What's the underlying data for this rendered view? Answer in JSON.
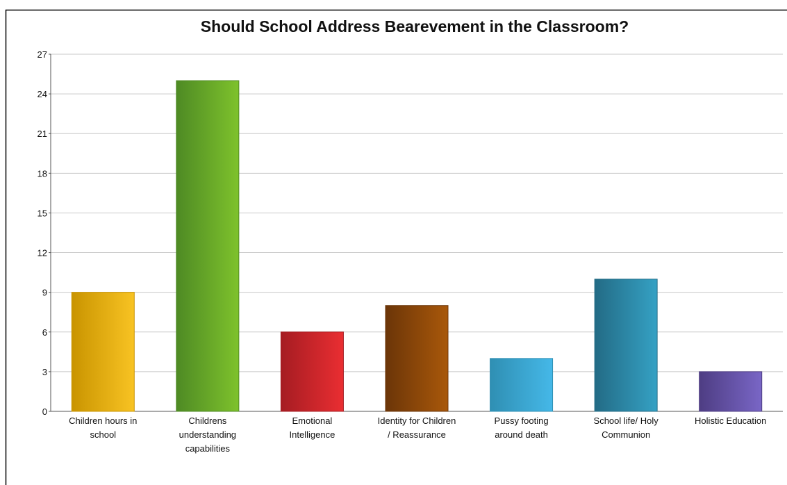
{
  "chart_data": {
    "type": "bar",
    "title": "Should School Address Bearevement in the Classroom?",
    "categories": [
      [
        "Children hours in",
        "school"
      ],
      [
        "Childrens",
        "understanding",
        "capabilities"
      ],
      [
        "Emotional",
        "Intelligence"
      ],
      [
        "Identity for Children",
        "/ Reassurance"
      ],
      [
        "Pussy footing",
        "around death"
      ],
      [
        "School life/ Holy",
        "Communion"
      ],
      [
        "Holistic Education"
      ]
    ],
    "values": [
      9,
      25,
      6,
      8,
      4,
      10,
      3
    ],
    "colors": [
      [
        "#c99400",
        "#f8c323"
      ],
      [
        "#4e8a24",
        "#7ec22c"
      ],
      [
        "#a51c22",
        "#ea2e32"
      ],
      [
        "#6b3508",
        "#a9580a"
      ],
      [
        "#2f8fb3",
        "#45b8e8"
      ],
      [
        "#236b85",
        "#35a1c4"
      ],
      [
        "#4e3d83",
        "#7966c6"
      ]
    ],
    "ylim": [
      0,
      27
    ],
    "yticks": [
      0,
      3,
      6,
      9,
      12,
      15,
      18,
      21,
      24,
      27
    ],
    "grid": true
  }
}
